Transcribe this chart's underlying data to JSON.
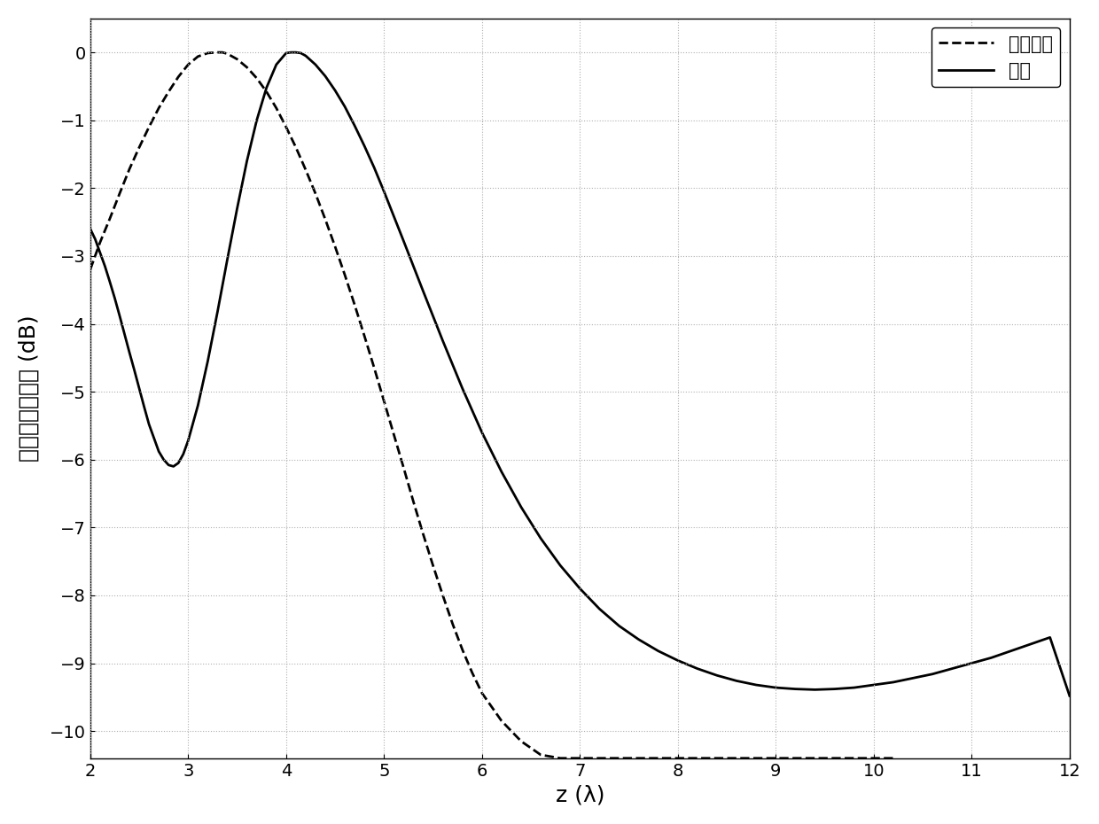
{
  "xlim": [
    2,
    12
  ],
  "ylim": [
    -10.4,
    0.5
  ],
  "xticks": [
    2,
    3,
    4,
    5,
    6,
    7,
    8,
    9,
    10,
    11,
    12
  ],
  "yticks": [
    0,
    -1,
    -2,
    -3,
    -4,
    -5,
    -6,
    -7,
    -8,
    -9,
    -10
  ],
  "xlabel": "z (λ)",
  "ylabel": "归一化电场强度 (dB)",
  "legend_labels": [
    "均匀密布",
    "稀布"
  ],
  "line_color": "#000000",
  "background_color": "#ffffff",
  "grid_color": "#b0b0b0",
  "dashed_x": [
    2.0,
    2.1,
    2.2,
    2.3,
    2.4,
    2.5,
    2.6,
    2.7,
    2.8,
    2.9,
    3.0,
    3.1,
    3.2,
    3.3,
    3.35,
    3.4,
    3.5,
    3.6,
    3.7,
    3.8,
    3.9,
    4.0,
    4.1,
    4.2,
    4.3,
    4.4,
    4.5,
    4.6,
    4.7,
    4.8,
    4.9,
    5.0,
    5.1,
    5.2,
    5.3,
    5.4,
    5.5,
    5.6,
    5.7,
    5.8,
    5.9,
    6.0,
    6.2,
    6.4,
    6.6,
    6.8,
    7.0,
    7.2,
    7.4,
    7.6,
    7.8,
    8.0,
    8.2,
    8.4,
    8.6,
    8.8,
    9.0,
    9.2,
    9.4,
    9.6,
    9.8,
    10.0,
    10.2
  ],
  "dashed_y": [
    -3.2,
    -2.8,
    -2.45,
    -2.08,
    -1.72,
    -1.4,
    -1.1,
    -0.82,
    -0.58,
    -0.36,
    -0.18,
    -0.06,
    -0.01,
    0.0,
    0.0,
    -0.02,
    -0.1,
    -0.22,
    -0.38,
    -0.58,
    -0.82,
    -1.1,
    -1.4,
    -1.73,
    -2.08,
    -2.46,
    -2.86,
    -3.28,
    -3.72,
    -4.18,
    -4.65,
    -5.14,
    -5.63,
    -6.12,
    -6.62,
    -7.1,
    -7.56,
    -8.0,
    -8.42,
    -8.8,
    -9.14,
    -9.44,
    -9.85,
    -10.15,
    -10.35,
    -10.4,
    -10.4,
    -10.4,
    -10.4,
    -10.4,
    -10.4,
    -10.4,
    -10.4,
    -10.4,
    -10.4,
    -10.4,
    -10.4,
    -10.4,
    -10.4,
    -10.4,
    -10.4,
    -10.4,
    -10.4
  ],
  "solid_x": [
    2.0,
    2.05,
    2.1,
    2.15,
    2.2,
    2.25,
    2.3,
    2.35,
    2.4,
    2.45,
    2.5,
    2.55,
    2.6,
    2.65,
    2.7,
    2.75,
    2.8,
    2.85,
    2.9,
    2.95,
    3.0,
    3.1,
    3.2,
    3.3,
    3.4,
    3.5,
    3.6,
    3.7,
    3.8,
    3.9,
    4.0,
    4.05,
    4.1,
    4.15,
    4.2,
    4.3,
    4.4,
    4.5,
    4.6,
    4.7,
    4.8,
    4.9,
    5.0,
    5.2,
    5.4,
    5.6,
    5.8,
    6.0,
    6.2,
    6.4,
    6.6,
    6.8,
    7.0,
    7.2,
    7.4,
    7.6,
    7.8,
    8.0,
    8.2,
    8.4,
    8.6,
    8.8,
    9.0,
    9.2,
    9.4,
    9.6,
    9.8,
    10.0,
    10.2,
    10.4,
    10.6,
    10.8,
    11.0,
    11.2,
    11.4,
    11.6,
    11.8,
    12.0
  ],
  "solid_y": [
    -2.6,
    -2.75,
    -2.95,
    -3.15,
    -3.38,
    -3.62,
    -3.88,
    -4.15,
    -4.42,
    -4.68,
    -4.95,
    -5.22,
    -5.48,
    -5.68,
    -5.88,
    -6.0,
    -6.08,
    -6.1,
    -6.05,
    -5.92,
    -5.72,
    -5.2,
    -4.55,
    -3.82,
    -3.05,
    -2.3,
    -1.6,
    -1.0,
    -0.52,
    -0.18,
    -0.01,
    0.0,
    0.0,
    -0.01,
    -0.05,
    -0.18,
    -0.35,
    -0.56,
    -0.8,
    -1.08,
    -1.38,
    -1.7,
    -2.05,
    -2.78,
    -3.52,
    -4.25,
    -4.95,
    -5.6,
    -6.18,
    -6.7,
    -7.16,
    -7.56,
    -7.9,
    -8.2,
    -8.45,
    -8.65,
    -8.82,
    -8.96,
    -9.08,
    -9.18,
    -9.26,
    -9.32,
    -9.36,
    -9.38,
    -9.39,
    -9.38,
    -9.36,
    -9.32,
    -9.28,
    -9.22,
    -9.16,
    -9.08,
    -9.0,
    -8.92,
    -8.82,
    -8.72,
    -8.62,
    -9.48
  ]
}
